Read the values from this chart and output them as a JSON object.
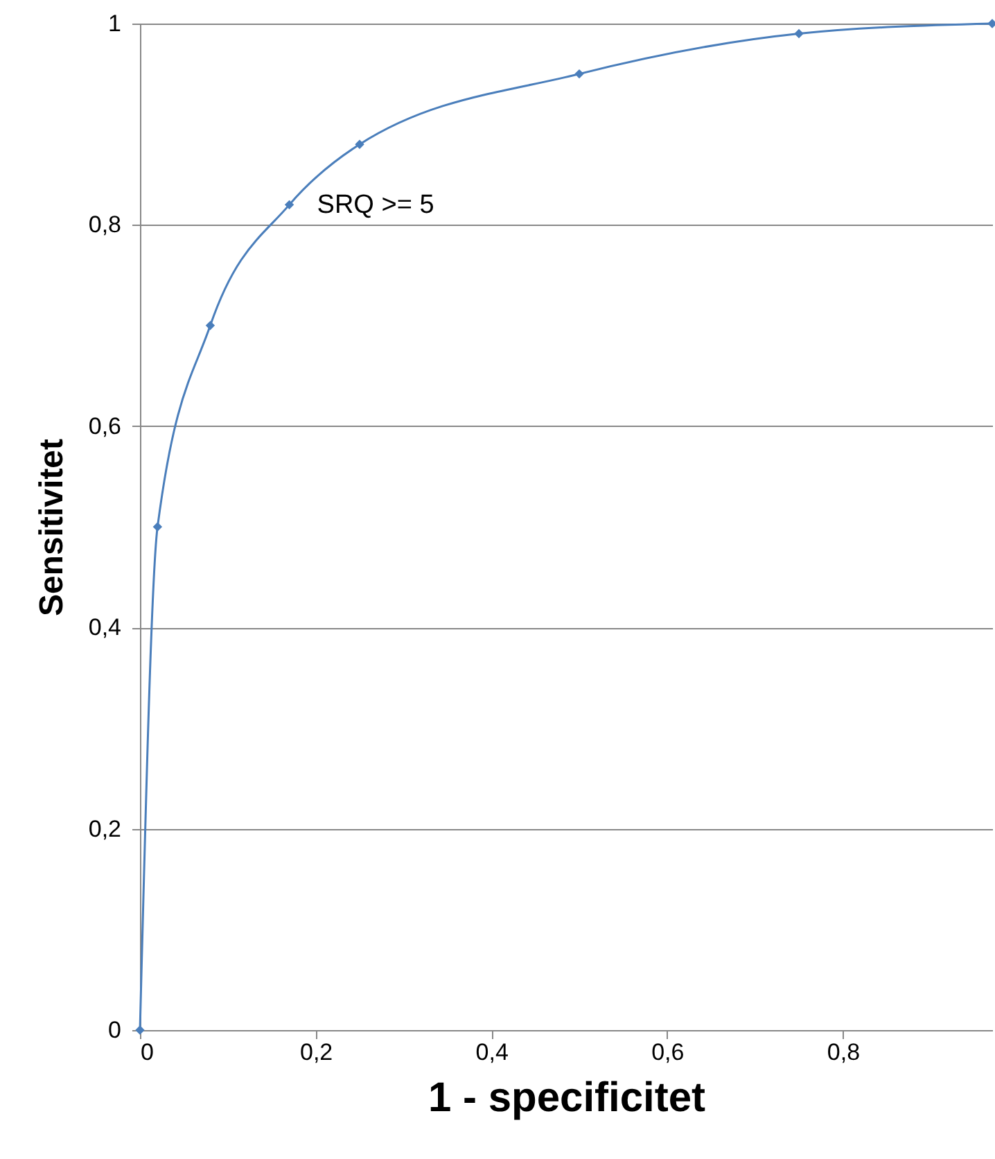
{
  "chart_data": {
    "type": "line",
    "xlabel": "1 - specificitet",
    "ylabel": "Sensitivitet",
    "x": [
      0,
      0.02,
      0.08,
      0.17,
      0.25,
      0.5,
      0.75,
      0.97
    ],
    "series": [
      {
        "color": "#4a7ebb",
        "values": [
          0,
          0.5,
          0.7,
          0.82,
          0.88,
          0.95,
          0.99,
          1
        ]
      }
    ],
    "xlim": [
      0,
      0.97
    ],
    "ylim": [
      0,
      1
    ],
    "xticks": [
      0,
      {
        "value": 0.2,
        "label": "0,2"
      },
      {
        "value": 0.4,
        "label": "0,4"
      },
      {
        "value": 0.6,
        "label": "0,6"
      },
      {
        "value": 0.8,
        "label": "0,8"
      }
    ],
    "yticks": [
      0,
      {
        "value": 0.2,
        "label": "0,2"
      },
      {
        "value": 0.4,
        "label": "0,4"
      },
      {
        "value": 0.6,
        "label": "0,6"
      },
      {
        "value": 0.8,
        "label": "0,8"
      },
      1
    ],
    "grid": "y",
    "marker": "diamond",
    "line_style": "solid",
    "annotations": [
      {
        "text": "SRQ >= 5",
        "x": 0.17,
        "y": 0.82
      }
    ]
  }
}
